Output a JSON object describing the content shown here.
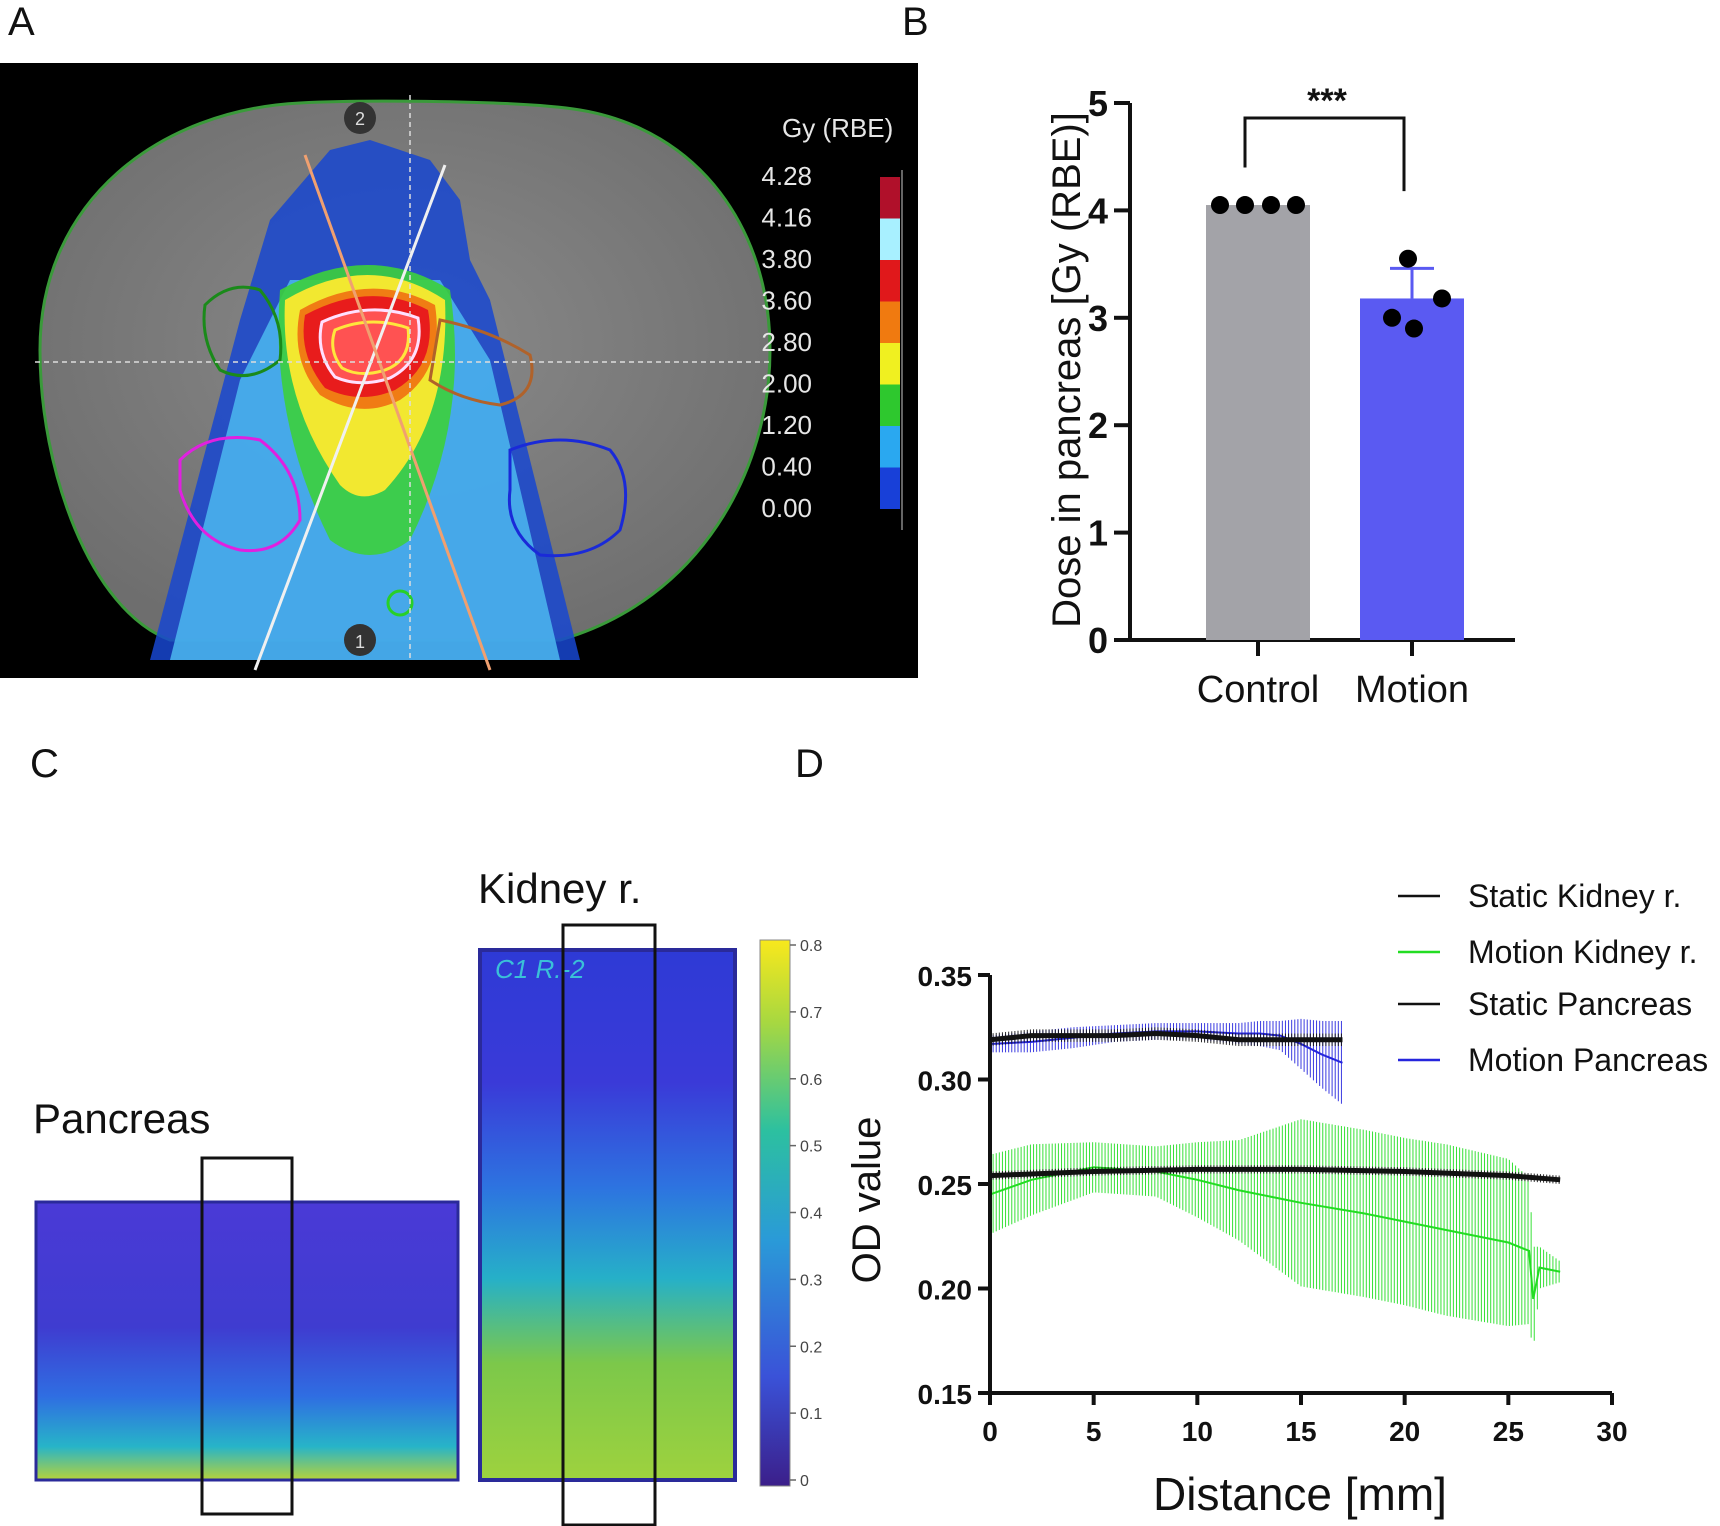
{
  "panels": {
    "a": "A",
    "b": "B",
    "c": "C",
    "d": "D"
  },
  "panel_a": {
    "colorbar_title": "Gy (RBE)",
    "colorbar_ticks": [
      "4.28",
      "4.16",
      "3.80",
      "3.60",
      "2.80",
      "2.00",
      "1.20",
      "0.40",
      "0.00"
    ],
    "colorbar_colors": [
      "#b0102a",
      "#a8f0ff",
      "#e0181b",
      "#f07a10",
      "#f0f020",
      "#2ec82e",
      "#2aa8f0",
      "#1840d8",
      "#0a1a9a"
    ],
    "marker_top": "2",
    "marker_bottom": "1"
  },
  "panel_c": {
    "pancreas_label": "Pancreas",
    "kidney_label": "Kidney r.",
    "film_text": "C1 R.-2",
    "colorbar_ticks": [
      "0.8",
      "0.7",
      "0.6",
      "0.5",
      "0.4",
      "0.3",
      "0.2",
      "0.1",
      "0"
    ]
  },
  "chart_data": [
    {
      "panel": "B",
      "type": "bar",
      "categories": [
        "Control",
        "Motion"
      ],
      "values": [
        4.05,
        3.18
      ],
      "errors": [
        0,
        0.28
      ],
      "points": [
        [
          4.05,
          4.05,
          4.05,
          4.05
        ],
        [
          3.55,
          3.18,
          3.0,
          2.9
        ]
      ],
      "colors": [
        "#a3a3a8",
        "#5a5af2"
      ],
      "ylabel": "Dose in pancreas [Gy (RBE)]",
      "ylim": [
        0,
        5
      ],
      "yticks": [
        "0",
        "1",
        "2",
        "3",
        "4",
        "5"
      ],
      "significance": "***"
    },
    {
      "panel": "D",
      "type": "line",
      "xlabel": "Distance [mm]",
      "ylabel": "OD value",
      "xlim": [
        0,
        30
      ],
      "ylim": [
        0.15,
        0.35
      ],
      "xticks": [
        "0",
        "5",
        "10",
        "15",
        "20",
        "25",
        "30"
      ],
      "yticks": [
        "0.15",
        "0.20",
        "0.25",
        "0.30",
        "0.35"
      ],
      "legend_position": "top-right",
      "series": [
        {
          "name": "Static Kidney r.",
          "color": "#111111",
          "x": [
            0,
            5,
            10,
            15,
            20,
            25,
            27.5
          ],
          "y": [
            0.254,
            0.256,
            0.257,
            0.257,
            0.256,
            0.254,
            0.252
          ],
          "err": [
            0.002,
            0.002,
            0.002,
            0.002,
            0.002,
            0.002,
            0.002
          ]
        },
        {
          "name": "Motion Kidney r.",
          "color": "#22dd22",
          "x": [
            0,
            2,
            5,
            8,
            10,
            12,
            15,
            18,
            20,
            22,
            25,
            26,
            26.2,
            26.5,
            27.5
          ],
          "y": [
            0.245,
            0.252,
            0.258,
            0.256,
            0.252,
            0.247,
            0.241,
            0.236,
            0.232,
            0.228,
            0.222,
            0.218,
            0.195,
            0.21,
            0.208
          ],
          "err": [
            0.019,
            0.017,
            0.012,
            0.012,
            0.018,
            0.024,
            0.04,
            0.04,
            0.04,
            0.041,
            0.04,
            0.035,
            0.025,
            0.01,
            0.005
          ]
        },
        {
          "name": "Static Pancreas",
          "color": "#111111",
          "x": [
            0,
            2,
            4,
            6,
            8,
            10,
            12,
            14,
            16,
            17
          ],
          "y": [
            0.319,
            0.321,
            0.321,
            0.321,
            0.322,
            0.321,
            0.319,
            0.319,
            0.319,
            0.319
          ],
          "err": [
            0.003,
            0.003,
            0.003,
            0.003,
            0.003,
            0.003,
            0.003,
            0.003,
            0.003,
            0.003
          ]
        },
        {
          "name": "Motion Pancreas",
          "color": "#2525dd",
          "x": [
            0,
            2,
            4,
            6,
            8,
            10,
            12,
            13,
            14,
            15,
            16,
            17
          ],
          "y": [
            0.317,
            0.318,
            0.32,
            0.322,
            0.323,
            0.323,
            0.322,
            0.322,
            0.321,
            0.317,
            0.312,
            0.308
          ],
          "err": [
            0.004,
            0.005,
            0.005,
            0.004,
            0.004,
            0.004,
            0.005,
            0.006,
            0.007,
            0.012,
            0.016,
            0.02
          ]
        }
      ]
    }
  ]
}
